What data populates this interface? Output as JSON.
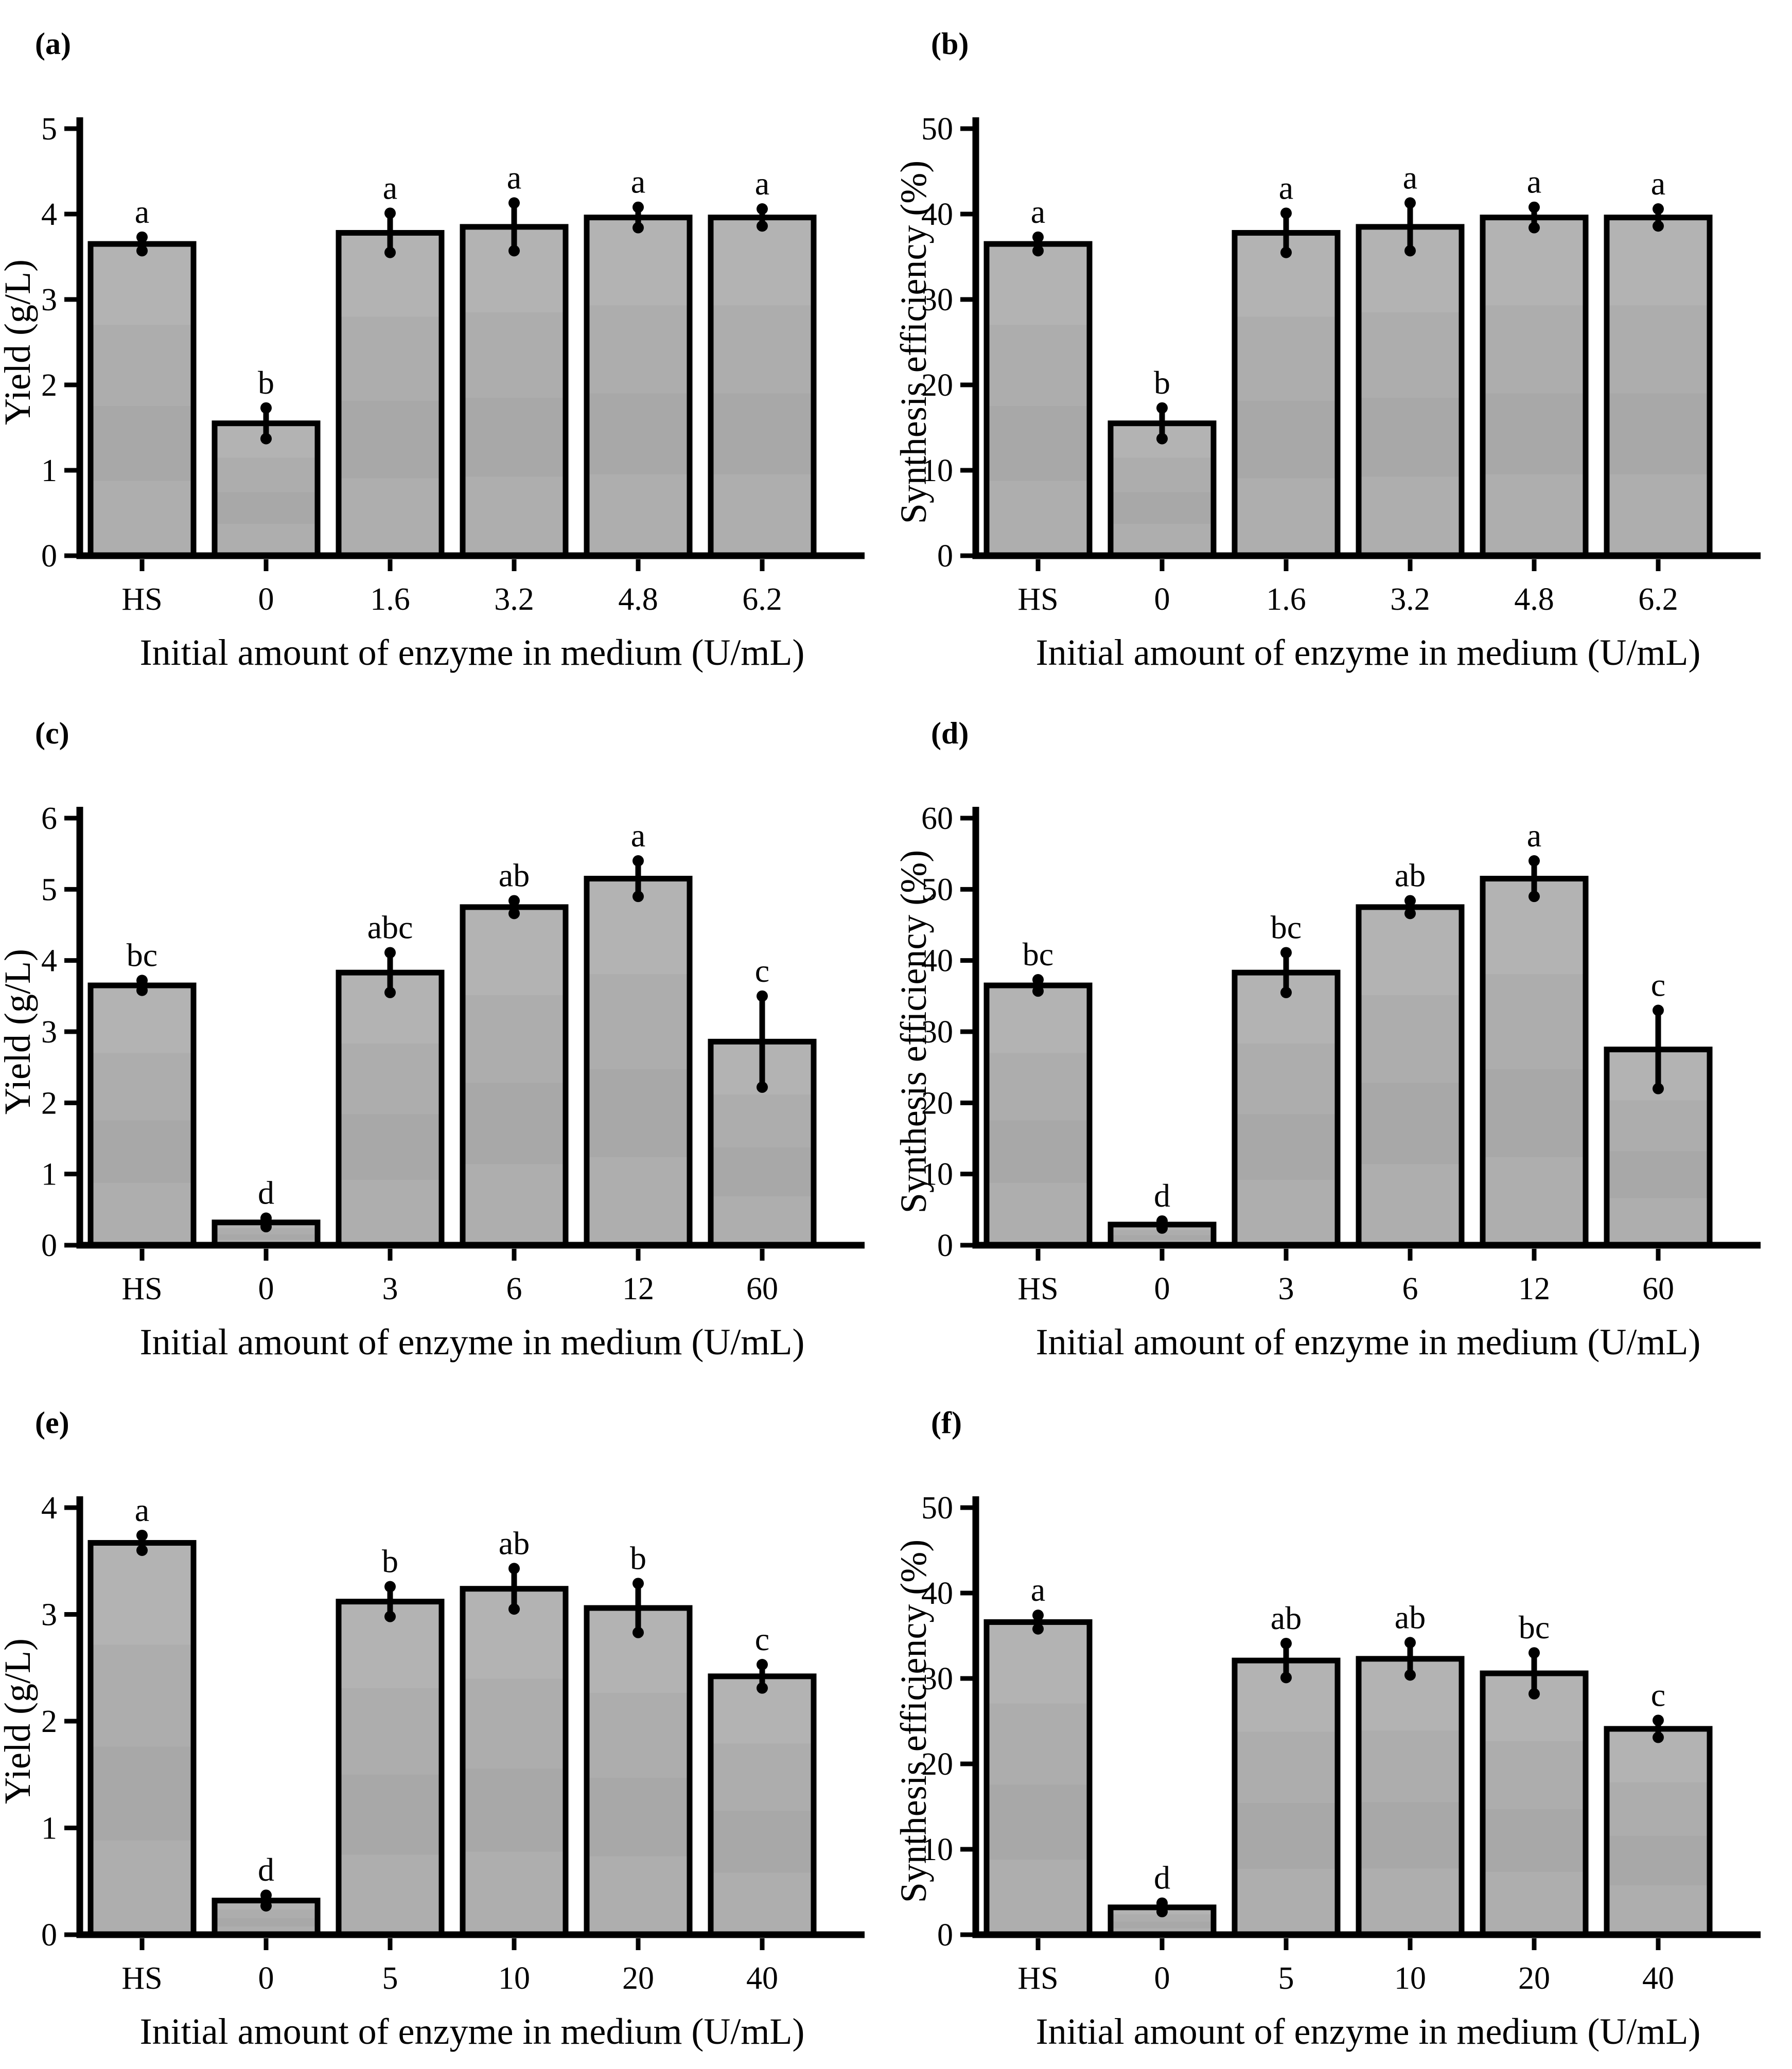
{
  "figure": {
    "background": "#ffffff",
    "bar_fill": "#a9a9a9",
    "bar_fill_bands": [
      "#b4b4b4",
      "#aeaeae",
      "#a8a8a8",
      "#aeaeae"
    ],
    "bar_stroke": "#000000",
    "axis_color": "#000000",
    "error_bar_color": "#000000",
    "xlabel_shared": "Initial amount of enzyme in medium (U/mL)",
    "panel_labels": [
      "(a)",
      "(b)",
      "(c)",
      "(d)",
      "(e)",
      "(f)"
    ]
  },
  "chart_data": [
    {
      "panel": "a",
      "panel_label": "(a)",
      "type": "bar",
      "title": "",
      "xlabel": "Initial amount of enzyme in medium (U/mL)",
      "ylabel": "Yield (g/L)",
      "ylim": [
        0,
        5
      ],
      "yticks": [
        0,
        1,
        2,
        3,
        4,
        5
      ],
      "grid": false,
      "legend": false,
      "categories": [
        "HS",
        "0",
        "1.6",
        "3.2",
        "4.8",
        "6.2"
      ],
      "values": [
        3.65,
        1.55,
        3.78,
        3.85,
        3.96,
        3.96
      ],
      "errors": [
        0.08,
        0.18,
        0.23,
        0.28,
        0.12,
        0.1
      ],
      "sig_letters": [
        "a",
        "b",
        "a",
        "a",
        "a",
        "a"
      ]
    },
    {
      "panel": "b",
      "panel_label": "(b)",
      "type": "bar",
      "title": "",
      "xlabel": "Initial amount of enzyme in medium (U/mL)",
      "ylabel": "Synthesis efficiency (%)",
      "ylim": [
        0,
        50
      ],
      "yticks": [
        0,
        10,
        20,
        30,
        40,
        50
      ],
      "grid": false,
      "legend": false,
      "categories": [
        "HS",
        "0",
        "1.6",
        "3.2",
        "4.8",
        "6.2"
      ],
      "values": [
        36.5,
        15.5,
        37.8,
        38.5,
        39.6,
        39.6
      ],
      "errors": [
        0.8,
        1.8,
        2.3,
        2.8,
        1.2,
        1.0
      ],
      "sig_letters": [
        "a",
        "b",
        "a",
        "a",
        "a",
        "a"
      ]
    },
    {
      "panel": "c",
      "panel_label": "(c)",
      "type": "bar",
      "title": "",
      "xlabel": "Initial amount of enzyme in medium (U/mL)",
      "ylabel": "Yield (g/L)",
      "ylim": [
        0,
        6
      ],
      "yticks": [
        0,
        1,
        2,
        3,
        4,
        5,
        6
      ],
      "grid": false,
      "legend": false,
      "categories": [
        "HS",
        "0",
        "3",
        "6",
        "12",
        "60"
      ],
      "values": [
        3.65,
        0.32,
        3.83,
        4.75,
        5.15,
        2.86
      ],
      "errors": [
        0.07,
        0.06,
        0.28,
        0.09,
        0.25,
        0.64
      ],
      "sig_letters": [
        "bc",
        "d",
        "abc",
        "ab",
        "a",
        "c"
      ]
    },
    {
      "panel": "d",
      "panel_label": "(d)",
      "type": "bar",
      "title": "",
      "xlabel": "Initial amount of enzyme in medium (U/mL)",
      "ylabel": "Synthesis efficiency (%)",
      "ylim": [
        0,
        60
      ],
      "yticks": [
        0,
        10,
        20,
        30,
        40,
        50,
        60
      ],
      "grid": false,
      "legend": false,
      "categories": [
        "HS",
        "0",
        "3",
        "6",
        "12",
        "60"
      ],
      "values": [
        36.5,
        2.9,
        38.3,
        47.5,
        51.5,
        27.5
      ],
      "errors": [
        0.8,
        0.5,
        2.8,
        0.9,
        2.5,
        5.5
      ],
      "sig_letters": [
        "bc",
        "d",
        "bc",
        "ab",
        "a",
        "c"
      ]
    },
    {
      "panel": "e",
      "panel_label": "(e)",
      "type": "bar",
      "title": "",
      "xlabel": "Initial amount of enzyme in medium (U/mL)",
      "ylabel": "Yield (g/L)",
      "ylim": [
        0,
        4
      ],
      "yticks": [
        0,
        1,
        2,
        3,
        4
      ],
      "grid": false,
      "legend": false,
      "categories": [
        "HS",
        "0",
        "5",
        "10",
        "20",
        "40"
      ],
      "values": [
        3.67,
        0.32,
        3.12,
        3.24,
        3.06,
        2.42
      ],
      "errors": [
        0.07,
        0.05,
        0.14,
        0.19,
        0.23,
        0.11
      ],
      "sig_letters": [
        "a",
        "d",
        "b",
        "ab",
        "b",
        "c"
      ]
    },
    {
      "panel": "f",
      "panel_label": "(f)",
      "type": "bar",
      "title": "",
      "xlabel": "Initial amount of enzyme in medium (U/mL)",
      "ylabel": "Synthesis efficiency (%)",
      "ylim": [
        0,
        50
      ],
      "yticks": [
        0,
        10,
        20,
        30,
        40,
        50
      ],
      "grid": false,
      "legend": false,
      "categories": [
        "HS",
        "0",
        "5",
        "10",
        "20",
        "40"
      ],
      "values": [
        36.6,
        3.2,
        32.1,
        32.3,
        30.6,
        24.1
      ],
      "errors": [
        0.8,
        0.5,
        2.0,
        1.9,
        2.4,
        1.0
      ],
      "sig_letters": [
        "a",
        "d",
        "ab",
        "ab",
        "bc",
        "c"
      ]
    }
  ]
}
